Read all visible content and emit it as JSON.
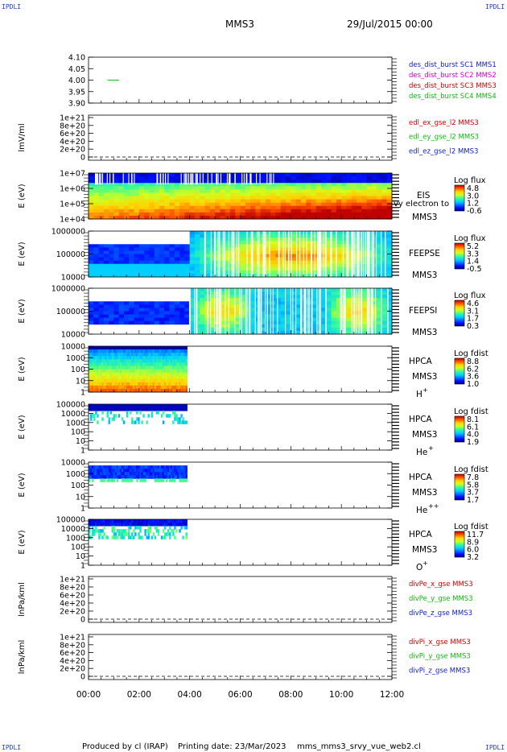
{
  "header": {
    "corner_label": "IPDLI",
    "spacecraft": "MMS3",
    "date": "29/Jul/2015 00:00"
  },
  "footer": {
    "produced_by": "Produced by  cl (IRAP)",
    "printing_date": "Printing date: 23/Mar/2023",
    "script_name": "mms_mms3_srvy_vue_web2.cl"
  },
  "colors": {
    "red": "#d40000",
    "magenta": "#d000d0",
    "green": "#11b811",
    "blue": "#1020c8"
  },
  "chart_data": [
    {
      "type": "line",
      "ylim": [
        3.9,
        4.1
      ],
      "ticks": [
        "4.10",
        "4.05",
        "4.00",
        "3.95",
        "3.90"
      ],
      "tick_values": [
        4.1,
        4.05,
        4.0,
        3.95,
        3.9
      ],
      "legend": [
        {
          "label": "des_dist_burst SC1 MMS1",
          "color": "blue"
        },
        {
          "label": "des_dist_burst SC2 MMS2",
          "color": "magenta"
        },
        {
          "label": "des_dist_burst SC3 MMS3",
          "color": "red"
        },
        {
          "label": "des_dist_burst SC4 MMS4",
          "color": "green"
        }
      ],
      "series": [
        {
          "color": "green",
          "x": [
            0.75,
            1.2
          ],
          "y": [
            4.0,
            4.0
          ]
        }
      ]
    },
    {
      "type": "line",
      "ylabel": "lmV/ml",
      "ylim": [
        0,
        1e+21
      ],
      "ticks": [
        "1e+21",
        "8e+20",
        "6e+20",
        "4e+20",
        "2e+20",
        "0"
      ],
      "tick_values": [
        1e+21,
        8e+20,
        6e+20,
        4e+20,
        2e+20,
        0
      ],
      "legend": [
        {
          "label": "edl_ex_gse_l2 MMS3",
          "color": "red"
        },
        {
          "label": "edl_ey_gse_l2 MMS3",
          "color": "green"
        },
        {
          "label": "edl_ez_gse_l2 MMS3",
          "color": "blue"
        }
      ]
    },
    {
      "type": "heatmap",
      "ylabel": "E (eV)",
      "ticks": [
        "1e+07",
        "1e+06",
        "1e+05",
        "1e+04"
      ],
      "instrument": "EIS",
      "instrument_extra": "vy electron to",
      "sc": "MMS3",
      "cb_title": "Log flux",
      "cb_ticks": [
        "4.8",
        "3.0",
        "1.2",
        "-0.6"
      ],
      "coverage": [
        0,
        12
      ]
    },
    {
      "type": "heatmap",
      "ylabel": "E (eV)",
      "ticks": [
        "1000000",
        "100000",
        "10000"
      ],
      "instrument": "FEEPSE",
      "sc": "MMS3",
      "cb_title": "Log flux",
      "cb_ticks": [
        "5.2",
        "3.3",
        "1.4",
        "-0.5"
      ],
      "coverage": [
        0,
        12
      ]
    },
    {
      "type": "heatmap",
      "ylabel": "E (eV)",
      "ticks": [
        "1000000",
        "100000",
        "10000"
      ],
      "instrument": "FEEPSI",
      "sc": "MMS3",
      "cb_title": "Log flux",
      "cb_ticks": [
        "4.6",
        "3.1",
        "1.7",
        "0.3"
      ],
      "coverage": [
        0,
        12
      ]
    },
    {
      "type": "heatmap",
      "ylabel": "E (eV)",
      "ticks": [
        "10000",
        "1000",
        "100",
        "10",
        "1"
      ],
      "instrument": "HPCA",
      "sc": "MMS3",
      "species": "H",
      "species_sup": "+",
      "cb_title": "Log fdist",
      "cb_ticks": [
        "8.8",
        "6.2",
        "3.6",
        "1.0"
      ],
      "coverage": [
        0,
        3.9
      ]
    },
    {
      "type": "heatmap",
      "ylabel": "E (eV)",
      "ticks": [
        "100000",
        "10000",
        "1000",
        "100",
        "10",
        "1"
      ],
      "instrument": "HPCA",
      "sc": "MMS3",
      "species": "He",
      "species_sup": "+",
      "cb_title": "Log fdist",
      "cb_ticks": [
        "8.1",
        "6.1",
        "4.0",
        "1.9"
      ],
      "coverage": [
        0,
        3.9
      ]
    },
    {
      "type": "heatmap",
      "ylabel": "E (eV)",
      "ticks": [
        "10000",
        "1000",
        "100",
        "10",
        "1"
      ],
      "instrument": "HPCA",
      "sc": "MMS3",
      "species": "He",
      "species_sup": "++",
      "cb_title": "Log fdist",
      "cb_ticks": [
        "7.8",
        "5.8",
        "3.7",
        "1.7"
      ],
      "coverage": [
        0,
        3.9
      ]
    },
    {
      "type": "heatmap",
      "ylabel": "E (eV)",
      "ticks": [
        "100000",
        "10000",
        "1000",
        "100",
        "10",
        "1"
      ],
      "instrument": "HPCA",
      "sc": "MMS3",
      "species": "O",
      "species_sup": "+",
      "cb_title": "Log fdist",
      "cb_ticks": [
        "11.7",
        "8.9",
        "6.0",
        "3.2"
      ],
      "coverage": [
        0,
        3.9
      ]
    },
    {
      "type": "line",
      "ylabel": "lnPa/kml",
      "ylim": [
        0,
        1e+21
      ],
      "ticks": [
        "1e+21",
        "8e+20",
        "6e+20",
        "4e+20",
        "2e+20",
        "0"
      ],
      "tick_values": [
        1e+21,
        8e+20,
        6e+20,
        4e+20,
        2e+20,
        0
      ],
      "legend": [
        {
          "label": "divPe_x_gse MMS3",
          "color": "red"
        },
        {
          "label": "divPe_y_gse MMS3",
          "color": "green"
        },
        {
          "label": "divPe_z_gse MMS3",
          "color": "blue"
        }
      ]
    },
    {
      "type": "line",
      "ylabel": "lnPa/kml",
      "ylim": [
        0,
        1e+21
      ],
      "ticks": [
        "1e+21",
        "8e+20",
        "6e+20",
        "4e+20",
        "2e+20",
        "0"
      ],
      "tick_values": [
        1e+21,
        8e+20,
        6e+20,
        4e+20,
        2e+20,
        0
      ],
      "legend": [
        {
          "label": "divPi_x_gse MMS3",
          "color": "red"
        },
        {
          "label": "divPi_y_gse MMS3",
          "color": "green"
        },
        {
          "label": "divPi_z_gse MMS3",
          "color": "blue"
        }
      ]
    }
  ],
  "time_axis": {
    "xlim": [
      0,
      12
    ],
    "labels": [
      "00:00",
      "02:00",
      "04:00",
      "06:00",
      "08:00",
      "10:00",
      "12:00"
    ],
    "values": [
      0,
      2,
      4,
      6,
      8,
      10,
      12
    ]
  }
}
